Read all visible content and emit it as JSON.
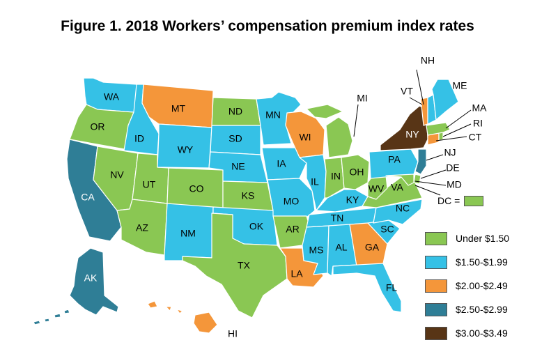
{
  "title": "Figure 1. 2018 Workers’ compensation premium index rates",
  "colors": {
    "under_150": "#8ac753",
    "r150_199": "#35c1e6",
    "r200_249": "#f4963a",
    "r250_299": "#2f7e96",
    "r300_349": "#583516"
  },
  "legend": [
    {
      "label": "Under $1.50",
      "color": "#8ac753"
    },
    {
      "label": "$1.50-$1.99",
      "color": "#35c1e6"
    },
    {
      "label": "$2.00-$2.49",
      "color": "#f4963a"
    },
    {
      "label": "$2.50-$2.99",
      "color": "#2f7e96"
    },
    {
      "label": "$3.00-$3.49",
      "color": "#583516"
    }
  ],
  "dc_note": {
    "label": "DC =",
    "color": "#8ac753"
  },
  "states": {
    "WA": {
      "label": "WA",
      "category": "$1.50-$1.99"
    },
    "OR": {
      "label": "OR",
      "category": "Under $1.50"
    },
    "CA": {
      "label": "CA",
      "category": "$2.50-$2.99"
    },
    "ID": {
      "label": "ID",
      "category": "$1.50-$1.99"
    },
    "NV": {
      "label": "NV",
      "category": "Under $1.50"
    },
    "MT": {
      "label": "MT",
      "category": "$2.00-$2.49"
    },
    "WY": {
      "label": "WY",
      "category": "$1.50-$1.99"
    },
    "UT": {
      "label": "UT",
      "category": "Under $1.50"
    },
    "AZ": {
      "label": "AZ",
      "category": "Under $1.50"
    },
    "CO": {
      "label": "CO",
      "category": "Under $1.50"
    },
    "NM": {
      "label": "NM",
      "category": "$1.50-$1.99"
    },
    "ND": {
      "label": "ND",
      "category": "Under $1.50"
    },
    "SD": {
      "label": "SD",
      "category": "$1.50-$1.99"
    },
    "NE": {
      "label": "NE",
      "category": "$1.50-$1.99"
    },
    "KS": {
      "label": "KS",
      "category": "Under $1.50"
    },
    "OK": {
      "label": "OK",
      "category": "$1.50-$1.99"
    },
    "TX": {
      "label": "TX",
      "category": "Under $1.50"
    },
    "MN": {
      "label": "MN",
      "category": "$1.50-$1.99"
    },
    "IA": {
      "label": "IA",
      "category": "$1.50-$1.99"
    },
    "MO": {
      "label": "MO",
      "category": "$1.50-$1.99"
    },
    "AR": {
      "label": "AR",
      "category": "Under $1.50"
    },
    "LA": {
      "label": "LA",
      "category": "$2.00-$2.49"
    },
    "WI": {
      "label": "WI",
      "category": "$2.00-$2.49"
    },
    "IL": {
      "label": "IL",
      "category": "$1.50-$1.99"
    },
    "MI": {
      "label": "MI",
      "category": "Under $1.50"
    },
    "IN": {
      "label": "IN",
      "category": "Under $1.50"
    },
    "OH": {
      "label": "OH",
      "category": "Under $1.50"
    },
    "KY": {
      "label": "KY",
      "category": "$1.50-$1.99"
    },
    "TN": {
      "label": "TN",
      "category": "$1.50-$1.99"
    },
    "MS": {
      "label": "MS",
      "category": "$1.50-$1.99"
    },
    "AL": {
      "label": "AL",
      "category": "$1.50-$1.99"
    },
    "GA": {
      "label": "GA",
      "category": "$2.00-$2.49"
    },
    "FL": {
      "label": "FL",
      "category": "$1.50-$1.99"
    },
    "SC": {
      "label": "SC",
      "category": "$1.50-$1.99"
    },
    "NC": {
      "label": "NC",
      "category": "$1.50-$1.99"
    },
    "VA": {
      "label": "VA",
      "category": "Under $1.50"
    },
    "WV": {
      "label": "WV",
      "category": "Under $1.50"
    },
    "PA": {
      "label": "PA",
      "category": "$1.50-$1.99"
    },
    "NY": {
      "label": "NY",
      "category": "$3.00-$3.49"
    },
    "VT": {
      "label": "VT",
      "category": "$2.00-$2.49"
    },
    "NH": {
      "label": "NH",
      "category": "$1.50-$1.99"
    },
    "ME": {
      "label": "ME",
      "category": "$1.50-$1.99"
    },
    "MA": {
      "label": "MA",
      "category": "Under $1.50"
    },
    "RI": {
      "label": "RI",
      "category": "Under $1.50"
    },
    "CT": {
      "label": "CT",
      "category": "$2.00-$2.49"
    },
    "NJ": {
      "label": "NJ",
      "category": "$2.50-$2.99"
    },
    "DE": {
      "label": "DE",
      "category": "Under $1.50"
    },
    "MD": {
      "label": "MD",
      "category": "Under $1.50"
    },
    "AK": {
      "label": "AK",
      "category": "$2.50-$2.99"
    },
    "HI": {
      "label": "HI",
      "category": "$2.00-$2.49"
    }
  }
}
